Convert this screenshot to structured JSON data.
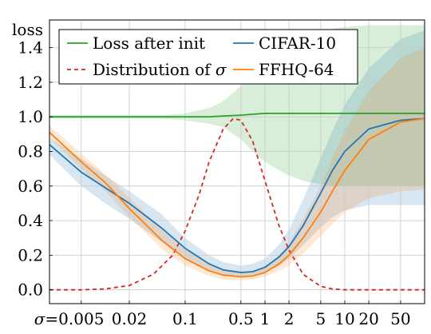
{
  "chart_data": {
    "type": "line",
    "title": "",
    "xlabel": "",
    "ylabel": "loss",
    "x_scale": "log",
    "x_tick_prefix": "σ=",
    "xticks": [
      "0.005",
      "0.02",
      "0.1",
      "0.5",
      "1",
      "2",
      "5",
      "10",
      "20",
      "50"
    ],
    "xtick_values": [
      0.005,
      0.02,
      0.1,
      0.5,
      1,
      2,
      5,
      10,
      20,
      50
    ],
    "yticks": [
      "0.0",
      "0.2",
      "0.4",
      "0.6",
      "0.8",
      "1.0",
      "1.2",
      "1.4"
    ],
    "ytick_values": [
      0.0,
      0.2,
      0.4,
      0.6,
      0.8,
      1.0,
      1.2,
      1.4
    ],
    "xlim": [
      0.002,
      100
    ],
    "ylim": [
      -0.08,
      1.56
    ],
    "grid": true,
    "legend_position": "top",
    "colors": {
      "green": "#2ca02c",
      "red": "#d62728",
      "blue": "#1f77b4",
      "orange": "#ff7f0e"
    },
    "series": [
      {
        "name": "Loss after init",
        "color": "#2ca02c",
        "style": "solid",
        "band": true,
        "x": [
          0.002,
          0.01,
          0.05,
          0.1,
          0.2,
          0.3,
          0.5,
          0.7,
          1,
          1.5,
          2,
          3,
          5,
          7,
          10,
          20,
          50,
          100
        ],
        "y": [
          1.0,
          1.0,
          1.0,
          1.0,
          1.0,
          1.005,
          1.01,
          1.015,
          1.02,
          1.02,
          1.02,
          1.02,
          1.02,
          1.02,
          1.02,
          1.02,
          1.02,
          1.02
        ],
        "band_lower": [
          0.99,
          0.99,
          0.99,
          0.98,
          0.96,
          0.94,
          0.87,
          0.8,
          0.74,
          0.69,
          0.66,
          0.63,
          0.61,
          0.6,
          0.6,
          0.6,
          0.6,
          0.6
        ],
        "band_upper": [
          1.01,
          1.01,
          1.01,
          1.02,
          1.05,
          1.09,
          1.18,
          1.26,
          1.32,
          1.38,
          1.42,
          1.46,
          1.49,
          1.51,
          1.52,
          1.53,
          1.53,
          1.53
        ]
      },
      {
        "name": "Distribution of σ",
        "color": "#d62728",
        "style": "dashed",
        "band": false,
        "x": [
          0.002,
          0.005,
          0.01,
          0.02,
          0.04,
          0.07,
          0.1,
          0.15,
          0.2,
          0.3,
          0.4,
          0.5,
          0.7,
          1,
          1.5,
          2,
          3,
          5,
          7,
          10,
          20,
          50,
          100
        ],
        "y": [
          0.0,
          0.0,
          0.005,
          0.025,
          0.09,
          0.2,
          0.34,
          0.55,
          0.74,
          0.93,
          0.99,
          0.98,
          0.86,
          0.63,
          0.37,
          0.23,
          0.09,
          0.02,
          0.005,
          0.0,
          0.0,
          0.0,
          0.0
        ]
      },
      {
        "name": "CIFAR-10",
        "color": "#1f77b4",
        "style": "solid",
        "band": true,
        "x": [
          0.002,
          0.005,
          0.01,
          0.02,
          0.05,
          0.1,
          0.2,
          0.3,
          0.5,
          0.7,
          1,
          1.5,
          2,
          3,
          5,
          7,
          10,
          20,
          50,
          100
        ],
        "y": [
          0.84,
          0.68,
          0.59,
          0.5,
          0.36,
          0.24,
          0.15,
          0.115,
          0.1,
          0.105,
          0.13,
          0.19,
          0.25,
          0.37,
          0.56,
          0.69,
          0.8,
          0.93,
          0.98,
          0.99
        ],
        "band_lower": [
          0.78,
          0.6,
          0.5,
          0.41,
          0.28,
          0.18,
          0.11,
          0.085,
          0.08,
          0.085,
          0.1,
          0.14,
          0.18,
          0.26,
          0.36,
          0.42,
          0.46,
          0.49,
          0.49,
          0.49
        ],
        "band_upper": [
          0.88,
          0.76,
          0.66,
          0.57,
          0.44,
          0.3,
          0.2,
          0.16,
          0.14,
          0.15,
          0.18,
          0.26,
          0.35,
          0.52,
          0.76,
          0.92,
          1.07,
          1.28,
          1.45,
          1.5
        ]
      },
      {
        "name": "FFHQ-64",
        "color": "#ff7f0e",
        "style": "solid",
        "band": true,
        "x": [
          0.002,
          0.005,
          0.01,
          0.02,
          0.05,
          0.1,
          0.2,
          0.3,
          0.5,
          0.7,
          1,
          1.5,
          2,
          3,
          5,
          7,
          10,
          20,
          50,
          100
        ],
        "y": [
          0.91,
          0.74,
          0.62,
          0.47,
          0.29,
          0.18,
          0.11,
          0.085,
          0.075,
          0.08,
          0.1,
          0.15,
          0.2,
          0.3,
          0.45,
          0.57,
          0.69,
          0.87,
          0.97,
          0.99
        ],
        "band_lower": [
          0.88,
          0.7,
          0.57,
          0.42,
          0.24,
          0.14,
          0.08,
          0.06,
          0.055,
          0.06,
          0.075,
          0.11,
          0.14,
          0.21,
          0.31,
          0.38,
          0.45,
          0.53,
          0.57,
          0.58
        ],
        "band_upper": [
          0.95,
          0.79,
          0.67,
          0.53,
          0.35,
          0.23,
          0.15,
          0.12,
          0.105,
          0.11,
          0.13,
          0.2,
          0.27,
          0.41,
          0.6,
          0.76,
          0.92,
          1.15,
          1.34,
          1.4
        ]
      }
    ]
  }
}
